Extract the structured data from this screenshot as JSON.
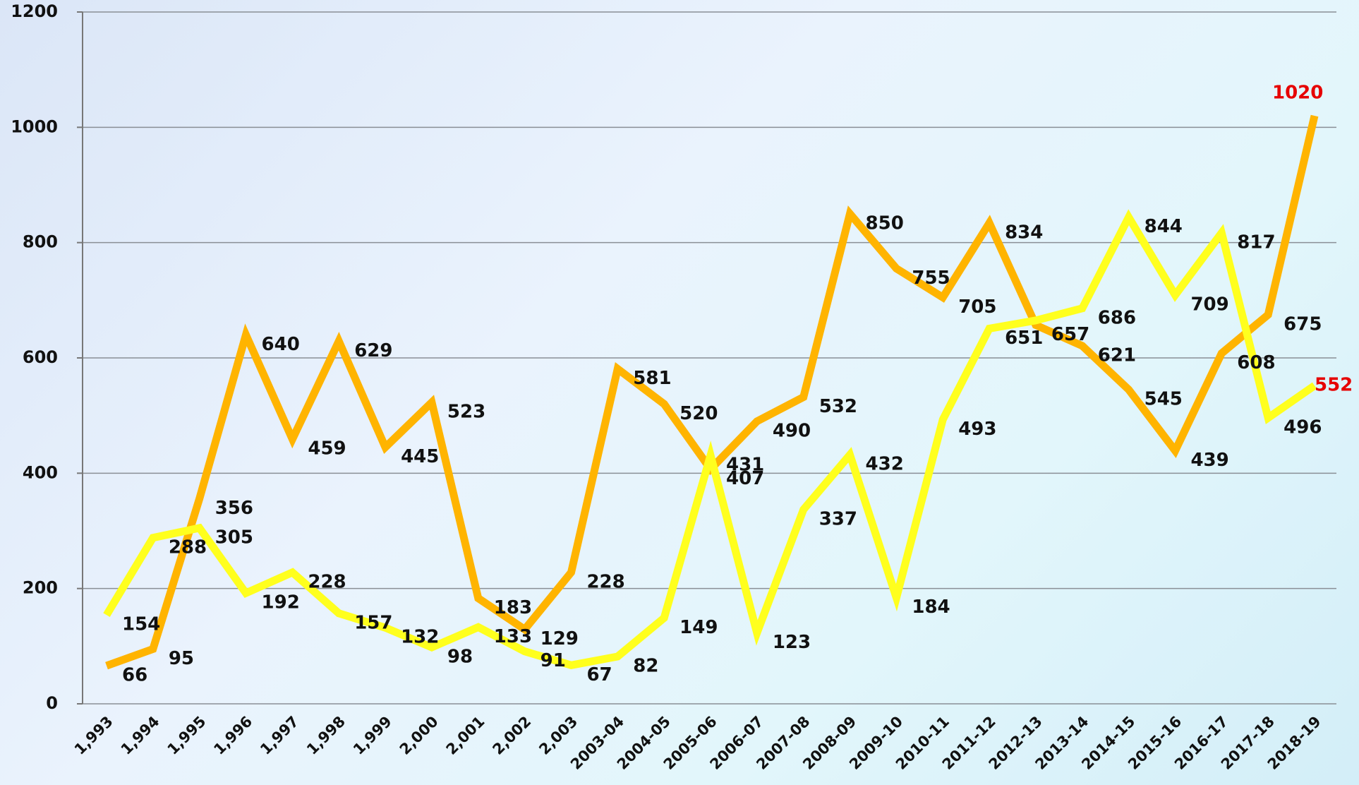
{
  "chart_data": {
    "type": "line",
    "categories": [
      "1,993",
      "1,994",
      "1,995",
      "1,996",
      "1,997",
      "1,998",
      "1,999",
      "2,000",
      "2,001",
      "2,002",
      "2,003",
      "2003-04",
      "2004-05",
      "2005-06",
      "2006-07",
      "2007-08",
      "2008-09",
      "2009-10",
      "2010-11",
      "2011-12",
      "2012-13",
      "2013-14",
      "2014-15",
      "2015-16",
      "2016-17",
      "2017-18",
      "2018-19"
    ],
    "series": [
      {
        "color": "#ffb400",
        "values": [
          66,
          95,
          356,
          640,
          459,
          629,
          445,
          523,
          183,
          129,
          228,
          581,
          520,
          407,
          490,
          532,
          850,
          755,
          705,
          834,
          657,
          621,
          545,
          439,
          608,
          675,
          1020
        ]
      },
      {
        "color": "#ffff1e",
        "values": [
          154,
          288,
          305,
          192,
          228,
          157,
          132,
          98,
          133,
          91,
          67,
          82,
          149,
          431,
          123,
          337,
          432,
          184,
          493,
          651,
          665,
          686,
          844,
          709,
          817,
          496,
          552
        ],
        "value_labels": [
          "154",
          "288",
          "305",
          "192",
          "228",
          "157",
          "132",
          "98",
          "133",
          "91",
          "67",
          "82",
          "149",
          "431",
          "123",
          "337",
          "432",
          "184",
          "493",
          "651",
          null,
          "686",
          "844",
          "709",
          "817",
          "496",
          "552"
        ]
      }
    ],
    "ylim": [
      0,
      1200
    ],
    "yticks": [
      0,
      200,
      400,
      600,
      800,
      1000,
      1200
    ],
    "grid": true,
    "last_label_color": "#e60000"
  }
}
